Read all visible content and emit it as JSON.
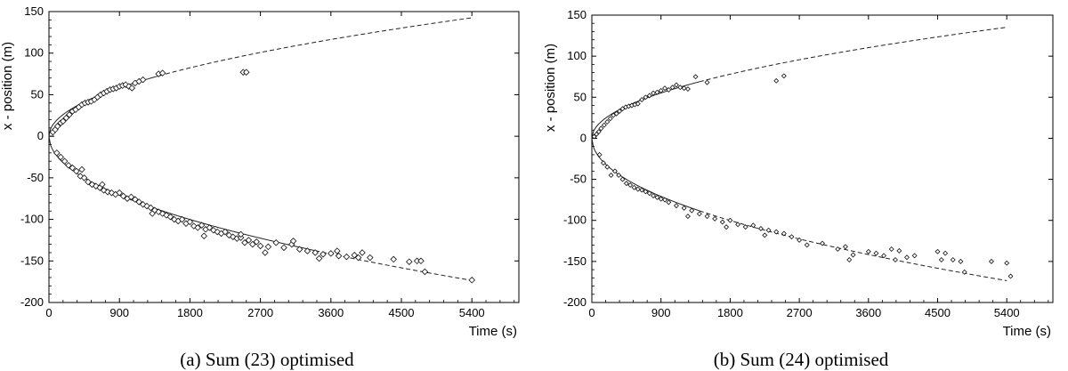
{
  "chart_data": [
    {
      "type": "scatter",
      "caption": "(a) Sum (23) optimised",
      "xlabel": "Time (s)",
      "ylabel": "x - position (m)",
      "xlim": [
        0,
        6000
      ],
      "ylim": [
        -200,
        150
      ],
      "xticks": [
        0,
        900,
        1800,
        2700,
        3600,
        4500,
        5400
      ],
      "yticks": [
        -200,
        -150,
        -100,
        -50,
        0,
        50,
        100,
        150
      ],
      "grid": false,
      "legend": "none",
      "series": [
        {
          "kind": "scatter",
          "marker": "diamond",
          "points": [
            [
              50,
              5
            ],
            [
              80,
              8
            ],
            [
              110,
              12
            ],
            [
              150,
              16
            ],
            [
              180,
              18
            ],
            [
              220,
              22
            ],
            [
              260,
              26
            ],
            [
              300,
              30
            ],
            [
              340,
              32
            ],
            [
              380,
              35
            ],
            [
              420,
              38
            ],
            [
              460,
              40
            ],
            [
              500,
              41
            ],
            [
              540,
              42
            ],
            [
              580,
              44
            ],
            [
              620,
              47
            ],
            [
              660,
              50
            ],
            [
              700,
              52
            ],
            [
              740,
              54
            ],
            [
              780,
              56
            ],
            [
              820,
              57
            ],
            [
              860,
              58
            ],
            [
              900,
              60
            ],
            [
              940,
              61
            ],
            [
              980,
              62
            ],
            [
              1020,
              60
            ],
            [
              1060,
              58
            ],
            [
              1100,
              64
            ],
            [
              1150,
              66
            ],
            [
              1200,
              68
            ],
            [
              1400,
              75
            ],
            [
              1450,
              76
            ],
            [
              2480,
              77
            ],
            [
              2520,
              77
            ],
            [
              100,
              -20
            ],
            [
              150,
              -25
            ],
            [
              200,
              -30
            ],
            [
              250,
              -35
            ],
            [
              300,
              -38
            ],
            [
              350,
              -42
            ],
            [
              400,
              -48
            ],
            [
              450,
              -50
            ],
            [
              500,
              -55
            ],
            [
              550,
              -58
            ],
            [
              600,
              -60
            ],
            [
              650,
              -62
            ],
            [
              700,
              -65
            ],
            [
              750,
              -67
            ],
            [
              800,
              -68
            ],
            [
              850,
              -70
            ],
            [
              900,
              -68
            ],
            [
              950,
              -72
            ],
            [
              1000,
              -75
            ],
            [
              1050,
              -73
            ],
            [
              1100,
              -76
            ],
            [
              1150,
              -79
            ],
            [
              1200,
              -82
            ],
            [
              1250,
              -84
            ],
            [
              1300,
              -86
            ],
            [
              1350,
              -89
            ],
            [
              1400,
              -91
            ],
            [
              1450,
              -93
            ],
            [
              1500,
              -95
            ],
            [
              1550,
              -97
            ],
            [
              1600,
              -100
            ],
            [
              1650,
              -102
            ],
            [
              1700,
              -100
            ],
            [
              1750,
              -105
            ],
            [
              1800,
              -103
            ],
            [
              1850,
              -108
            ],
            [
              1900,
              -110
            ],
            [
              1950,
              -107
            ],
            [
              2000,
              -112
            ],
            [
              2050,
              -110
            ],
            [
              2100,
              -113
            ],
            [
              2150,
              -115
            ],
            [
              2200,
              -117
            ],
            [
              2250,
              -115
            ],
            [
              2300,
              -119
            ],
            [
              2350,
              -121
            ],
            [
              2400,
              -123
            ],
            [
              2450,
              -122
            ],
            [
              2500,
              -128
            ],
            [
              2550,
              -125
            ],
            [
              2600,
              -130
            ],
            [
              2650,
              -127
            ],
            [
              2700,
              -132
            ],
            [
              2800,
              -133
            ],
            [
              2900,
              -128
            ],
            [
              3000,
              -134
            ],
            [
              3100,
              -130
            ],
            [
              3200,
              -136
            ],
            [
              3300,
              -138
            ],
            [
              3400,
              -140
            ],
            [
              3500,
              -142
            ],
            [
              3600,
              -141
            ],
            [
              3700,
              -144
            ],
            [
              3800,
              -145
            ],
            [
              3900,
              -143
            ],
            [
              4000,
              -140
            ],
            [
              4100,
              -146
            ],
            [
              4400,
              -148
            ],
            [
              4700,
              -150
            ],
            [
              4800,
              -163
            ],
            [
              5400,
              -173
            ],
            [
              420,
              -40
            ],
            [
              680,
              -58
            ],
            [
              1320,
              -93
            ],
            [
              1980,
              -120
            ],
            [
              2450,
              -118
            ],
            [
              2760,
              -140
            ],
            [
              3120,
              -126
            ],
            [
              3450,
              -147
            ],
            [
              3680,
              -138
            ],
            [
              3950,
              -146
            ],
            [
              4600,
              -151
            ],
            [
              4750,
              -150
            ]
          ]
        },
        {
          "kind": "curve",
          "model": "y = a·sqrt(t)",
          "branches": [
            {
              "coef": 1.94,
              "solid_to": 1400,
              "dashed_to": 5400
            },
            {
              "coef": -2.36,
              "solid_to": 3400,
              "dashed_to": 5400
            }
          ]
        }
      ]
    },
    {
      "type": "scatter",
      "caption": "(b) Sum (24) optimised",
      "xlabel": "Time (s)",
      "ylabel": "x - position (m)",
      "xlim": [
        0,
        6000
      ],
      "ylim": [
        -200,
        150
      ],
      "xticks": [
        0,
        900,
        1800,
        2700,
        3600,
        4500,
        5400
      ],
      "yticks": [
        -200,
        -150,
        -100,
        -50,
        0,
        50,
        100,
        150
      ],
      "grid": false,
      "legend": "none",
      "series": [
        {
          "kind": "scatter",
          "marker": "diamond",
          "points": [
            [
              30,
              2
            ],
            [
              60,
              5
            ],
            [
              90,
              8
            ],
            [
              120,
              12
            ],
            [
              160,
              16
            ],
            [
              200,
              20
            ],
            [
              240,
              24
            ],
            [
              280,
              28
            ],
            [
              320,
              30
            ],
            [
              360,
              33
            ],
            [
              400,
              36
            ],
            [
              440,
              38
            ],
            [
              480,
              39
            ],
            [
              520,
              40
            ],
            [
              560,
              41
            ],
            [
              600,
              42
            ],
            [
              650,
              47
            ],
            [
              700,
              50
            ],
            [
              750,
              52
            ],
            [
              800,
              55
            ],
            [
              850,
              56
            ],
            [
              900,
              58
            ],
            [
              950,
              61
            ],
            [
              1000,
              59
            ],
            [
              1050,
              62
            ],
            [
              1100,
              65
            ],
            [
              1150,
              62
            ],
            [
              1200,
              61
            ],
            [
              1250,
              60
            ],
            [
              1350,
              75
            ],
            [
              1500,
              68
            ],
            [
              2400,
              70
            ],
            [
              2500,
              76
            ],
            [
              100,
              -20
            ],
            [
              150,
              -30
            ],
            [
              200,
              -35
            ],
            [
              300,
              -40
            ],
            [
              350,
              -45
            ],
            [
              400,
              -50
            ],
            [
              450,
              -55
            ],
            [
              500,
              -57
            ],
            [
              550,
              -60
            ],
            [
              600,
              -62
            ],
            [
              650,
              -63
            ],
            [
              700,
              -65
            ],
            [
              750,
              -67
            ],
            [
              800,
              -70
            ],
            [
              850,
              -72
            ],
            [
              900,
              -74
            ],
            [
              950,
              -75
            ],
            [
              1000,
              -78
            ],
            [
              1100,
              -82
            ],
            [
              1200,
              -85
            ],
            [
              1300,
              -88
            ],
            [
              1400,
              -92
            ],
            [
              1500,
              -95
            ],
            [
              1600,
              -98
            ],
            [
              1700,
              -102
            ],
            [
              1800,
              -100
            ],
            [
              1900,
              -105
            ],
            [
              2000,
              -108
            ],
            [
              2100,
              -106
            ],
            [
              2200,
              -110
            ],
            [
              2300,
              -112
            ],
            [
              2400,
              -114
            ],
            [
              2500,
              -116
            ],
            [
              2600,
              -120
            ],
            [
              2700,
              -124
            ],
            [
              2800,
              -130
            ],
            [
              3000,
              -128
            ],
            [
              3200,
              -135
            ],
            [
              3300,
              -132
            ],
            [
              3400,
              -142
            ],
            [
              3600,
              -138
            ],
            [
              3700,
              -140
            ],
            [
              3800,
              -143
            ],
            [
              3900,
              -135
            ],
            [
              4000,
              -137
            ],
            [
              4100,
              -145
            ],
            [
              4200,
              -143
            ],
            [
              4500,
              -138
            ],
            [
              4600,
              -140
            ],
            [
              4700,
              -148
            ],
            [
              4800,
              -150
            ],
            [
              5200,
              -150
            ],
            [
              5400,
              -152
            ],
            [
              5450,
              -168
            ],
            [
              250,
              -45
            ],
            [
              1250,
              -95
            ],
            [
              1750,
              -108
            ],
            [
              2250,
              -118
            ],
            [
              3350,
              -148
            ],
            [
              3950,
              -148
            ],
            [
              4550,
              -148
            ],
            [
              4850,
              -163
            ]
          ]
        },
        {
          "kind": "curve",
          "model": "y = a·sqrt(t)",
          "branches": [
            {
              "coef": 1.84,
              "solid_to": 1400,
              "dashed_to": 5400
            },
            {
              "coef": -2.36,
              "solid_to": 1400,
              "dashed_to": 5400
            }
          ]
        }
      ]
    }
  ]
}
